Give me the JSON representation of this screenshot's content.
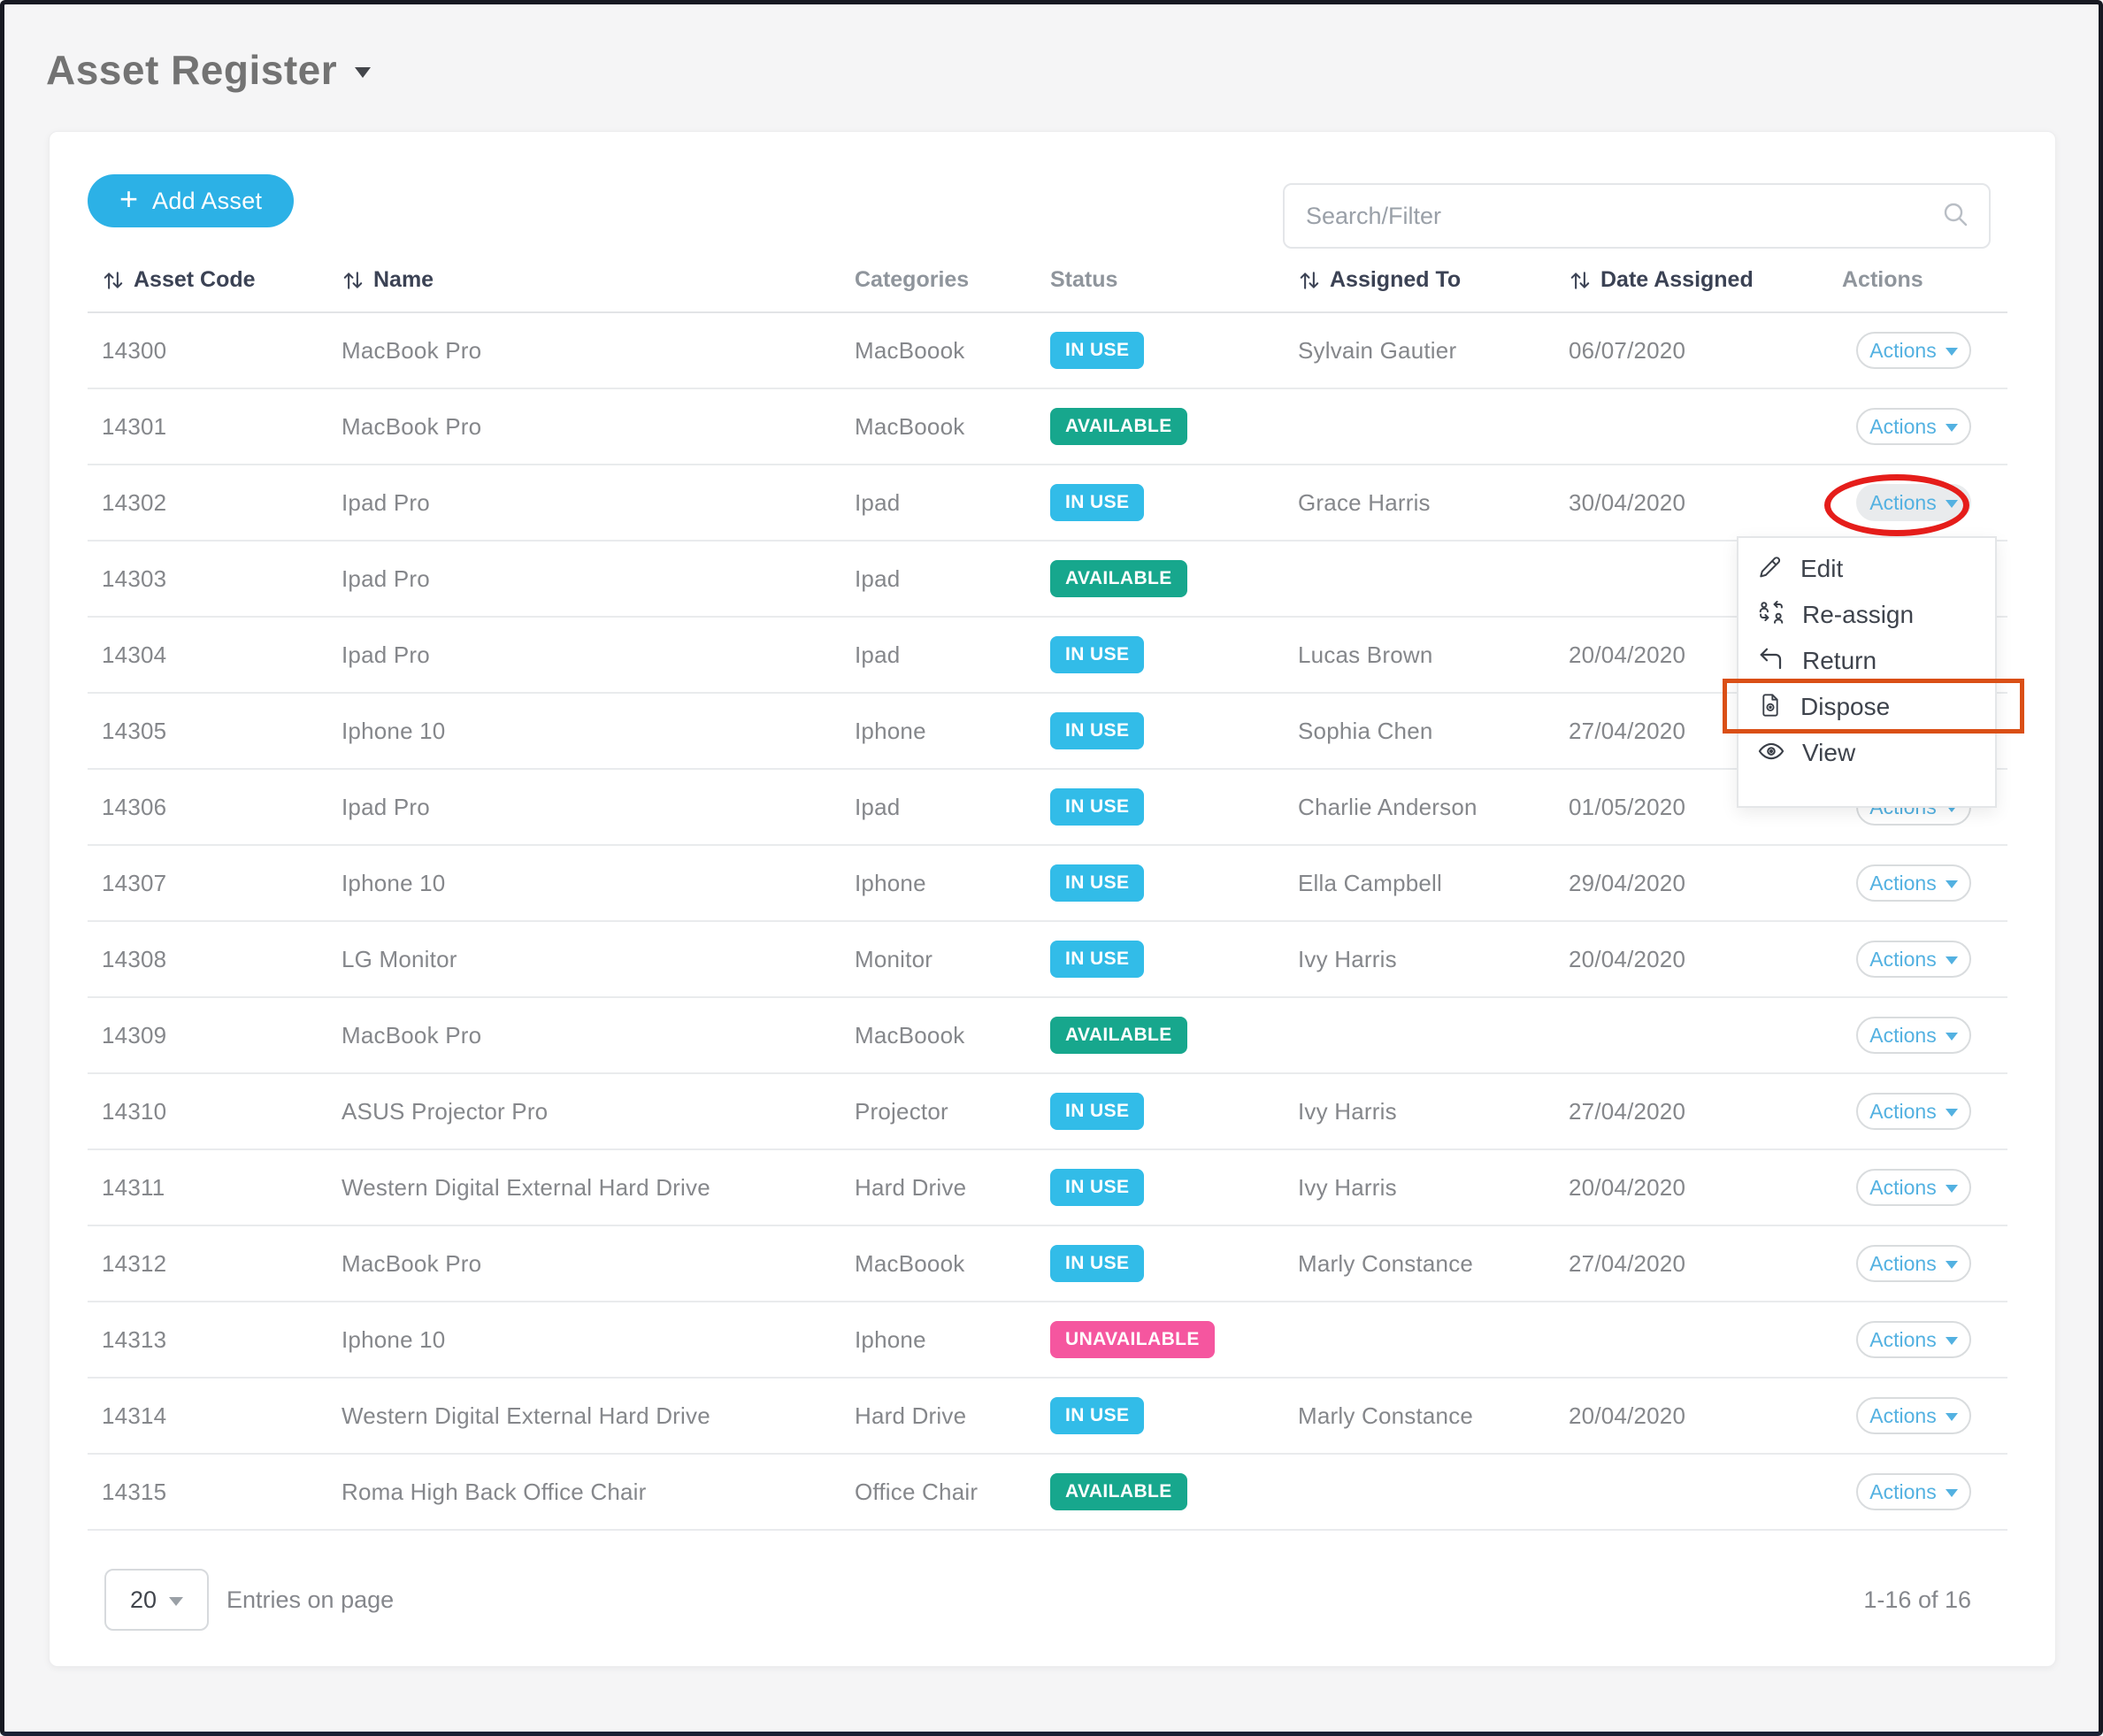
{
  "page": {
    "title": "Asset Register"
  },
  "toolbar": {
    "add_asset_label": "Add Asset",
    "search_placeholder": "Search/Filter"
  },
  "table": {
    "columns": [
      {
        "label": "Asset Code",
        "sortable": true
      },
      {
        "label": "Name",
        "sortable": true
      },
      {
        "label": "Categories",
        "sortable": false
      },
      {
        "label": "Status",
        "sortable": false
      },
      {
        "label": "Assigned To",
        "sortable": true
      },
      {
        "label": "Date Assigned",
        "sortable": true
      },
      {
        "label": "Actions",
        "sortable": false
      }
    ],
    "actions_button_label": "Actions",
    "rows": [
      {
        "code": "14300",
        "name": "MacBook Pro",
        "category": "MacBoook",
        "status": "IN USE",
        "status_type": "in-use",
        "assigned_to": "Sylvain Gautier",
        "date_assigned": "06/07/2020"
      },
      {
        "code": "14301",
        "name": "MacBook Pro",
        "category": "MacBoook",
        "status": "AVAILABLE",
        "status_type": "available",
        "assigned_to": "",
        "date_assigned": ""
      },
      {
        "code": "14302",
        "name": "Ipad Pro",
        "category": "Ipad",
        "status": "IN USE",
        "status_type": "in-use",
        "assigned_to": "Grace Harris",
        "date_assigned": "30/04/2020",
        "actions_active": true
      },
      {
        "code": "14303",
        "name": "Ipad Pro",
        "category": "Ipad",
        "status": "AVAILABLE",
        "status_type": "available",
        "assigned_to": "",
        "date_assigned": ""
      },
      {
        "code": "14304",
        "name": "Ipad Pro",
        "category": "Ipad",
        "status": "IN USE",
        "status_type": "in-use",
        "assigned_to": "Lucas Brown",
        "date_assigned": "20/04/2020"
      },
      {
        "code": "14305",
        "name": "Iphone 10",
        "category": "Iphone",
        "status": "IN USE",
        "status_type": "in-use",
        "assigned_to": "Sophia Chen",
        "date_assigned": "27/04/2020"
      },
      {
        "code": "14306",
        "name": "Ipad Pro",
        "category": "Ipad",
        "status": "IN USE",
        "status_type": "in-use",
        "assigned_to": "Charlie Anderson",
        "date_assigned": "01/05/2020"
      },
      {
        "code": "14307",
        "name": "Iphone 10",
        "category": "Iphone",
        "status": "IN USE",
        "status_type": "in-use",
        "assigned_to": "Ella Campbell",
        "date_assigned": "29/04/2020"
      },
      {
        "code": "14308",
        "name": "LG Monitor",
        "category": "Monitor",
        "status": "IN USE",
        "status_type": "in-use",
        "assigned_to": "Ivy Harris",
        "date_assigned": "20/04/2020"
      },
      {
        "code": "14309",
        "name": "MacBook Pro",
        "category": "MacBoook",
        "status": "AVAILABLE",
        "status_type": "available",
        "assigned_to": "",
        "date_assigned": ""
      },
      {
        "code": "14310",
        "name": "ASUS Projector Pro",
        "category": "Projector",
        "status": "IN USE",
        "status_type": "in-use",
        "assigned_to": "Ivy Harris",
        "date_assigned": "27/04/2020"
      },
      {
        "code": "14311",
        "name": "Western Digital External Hard Drive",
        "category": "Hard Drive",
        "status": "IN USE",
        "status_type": "in-use",
        "assigned_to": "Ivy Harris",
        "date_assigned": "20/04/2020"
      },
      {
        "code": "14312",
        "name": "MacBook Pro",
        "category": "MacBoook",
        "status": "IN USE",
        "status_type": "in-use",
        "assigned_to": "Marly Constance",
        "date_assigned": "27/04/2020"
      },
      {
        "code": "14313",
        "name": "Iphone 10",
        "category": "Iphone",
        "status": "UNAVAILABLE",
        "status_type": "unavailable",
        "assigned_to": "",
        "date_assigned": ""
      },
      {
        "code": "14314",
        "name": "Western Digital External Hard Drive",
        "category": "Hard Drive",
        "status": "IN USE",
        "status_type": "in-use",
        "assigned_to": "Marly Constance",
        "date_assigned": "20/04/2020"
      },
      {
        "code": "14315",
        "name": "Roma High Back Office Chair",
        "category": "Office Chair",
        "status": "AVAILABLE",
        "status_type": "available",
        "assigned_to": "",
        "date_assigned": ""
      }
    ]
  },
  "menu": {
    "items": [
      {
        "label": "Edit",
        "icon": "pencil-icon"
      },
      {
        "label": "Re-assign",
        "icon": "reassign-icon"
      },
      {
        "label": "Return",
        "icon": "return-arrow-icon"
      },
      {
        "label": "Dispose",
        "icon": "dispose-file-icon",
        "highlighted": true
      },
      {
        "label": "View",
        "icon": "eye-icon"
      }
    ]
  },
  "footer": {
    "entries_per_page": "20",
    "entries_label": "Entries on page",
    "range_label": "1-16 of 16"
  },
  "colors": {
    "badge_in_use": "#32bce8",
    "badge_available": "#17a78d",
    "badge_unavailable": "#f5569f",
    "primary_button": "#2cb1e6",
    "actions_link": "#53b1e1",
    "annotation_red": "#e51d1a",
    "annotation_orange": "#da4f16"
  }
}
